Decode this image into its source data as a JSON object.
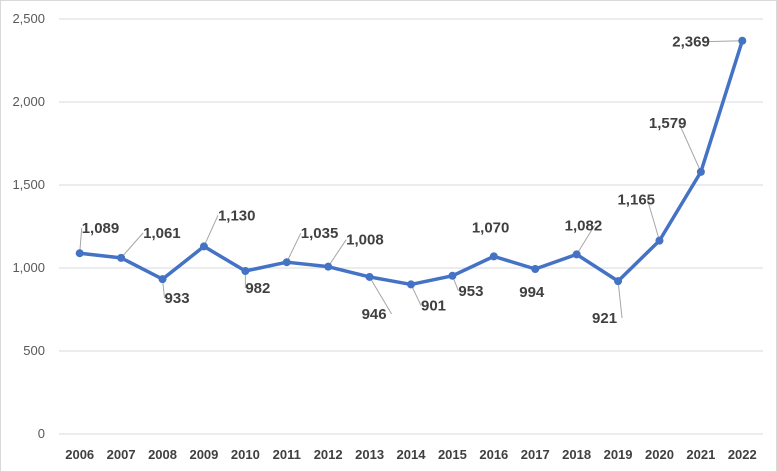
{
  "chart_data": {
    "type": "line",
    "title": "",
    "xlabel": "",
    "ylabel": "",
    "categories": [
      "2006",
      "2007",
      "2008",
      "2009",
      "2010",
      "2011",
      "2012",
      "2013",
      "2014",
      "2015",
      "2016",
      "2017",
      "2018",
      "2019",
      "2020",
      "2021",
      "2022"
    ],
    "series": [
      {
        "values": [
          1089,
          1061,
          933,
          1130,
          982,
          1035,
          1008,
          946,
          901,
          953,
          1070,
          994,
          1082,
          921,
          1165,
          1579,
          2369
        ],
        "labels": [
          "1,089",
          "1,061",
          "933",
          "1,130",
          "982",
          "1,035",
          "1,008",
          "946",
          "901",
          "953",
          "1,070",
          "994",
          "1,082",
          "921",
          "1,165",
          "1,579",
          "2,369"
        ],
        "color": "#4472c4"
      }
    ],
    "ylim": [
      0,
      2500
    ],
    "yticks": [
      0,
      500,
      1000,
      1500,
      2000,
      2500
    ],
    "ytick_labels": [
      "0",
      "500",
      "1,000",
      "1,500",
      "2,000",
      "2,500"
    ],
    "grid": true,
    "legend": "none"
  }
}
